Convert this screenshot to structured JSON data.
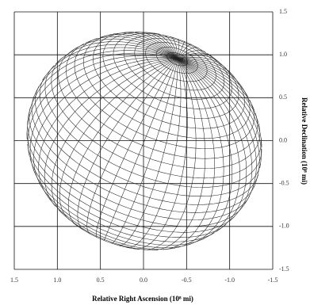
{
  "chart_data": {
    "type": "surface",
    "x_label": "Relative Right Ascension (10⁸ mi)",
    "y_label": "Relative Declination (10⁸ mi)",
    "xlim": [
      1.5,
      -1.5
    ],
    "ylim": [
      -1.5,
      1.5
    ],
    "xticks": [
      1.5,
      {
        "value": 1,
        "label": "1.0"
      },
      0.5,
      {
        "value": 0,
        "label": "0.0"
      },
      -0.5,
      {
        "value": -1,
        "label": "-1.0"
      },
      -1.5
    ],
    "yticks": [
      1.5,
      {
        "value": 1,
        "label": "1.0"
      },
      0.5,
      {
        "value": 0,
        "label": "0.0"
      },
      -0.5,
      {
        "value": -1,
        "label": "-1.0"
      },
      -1.5
    ],
    "grid": true
  }
}
